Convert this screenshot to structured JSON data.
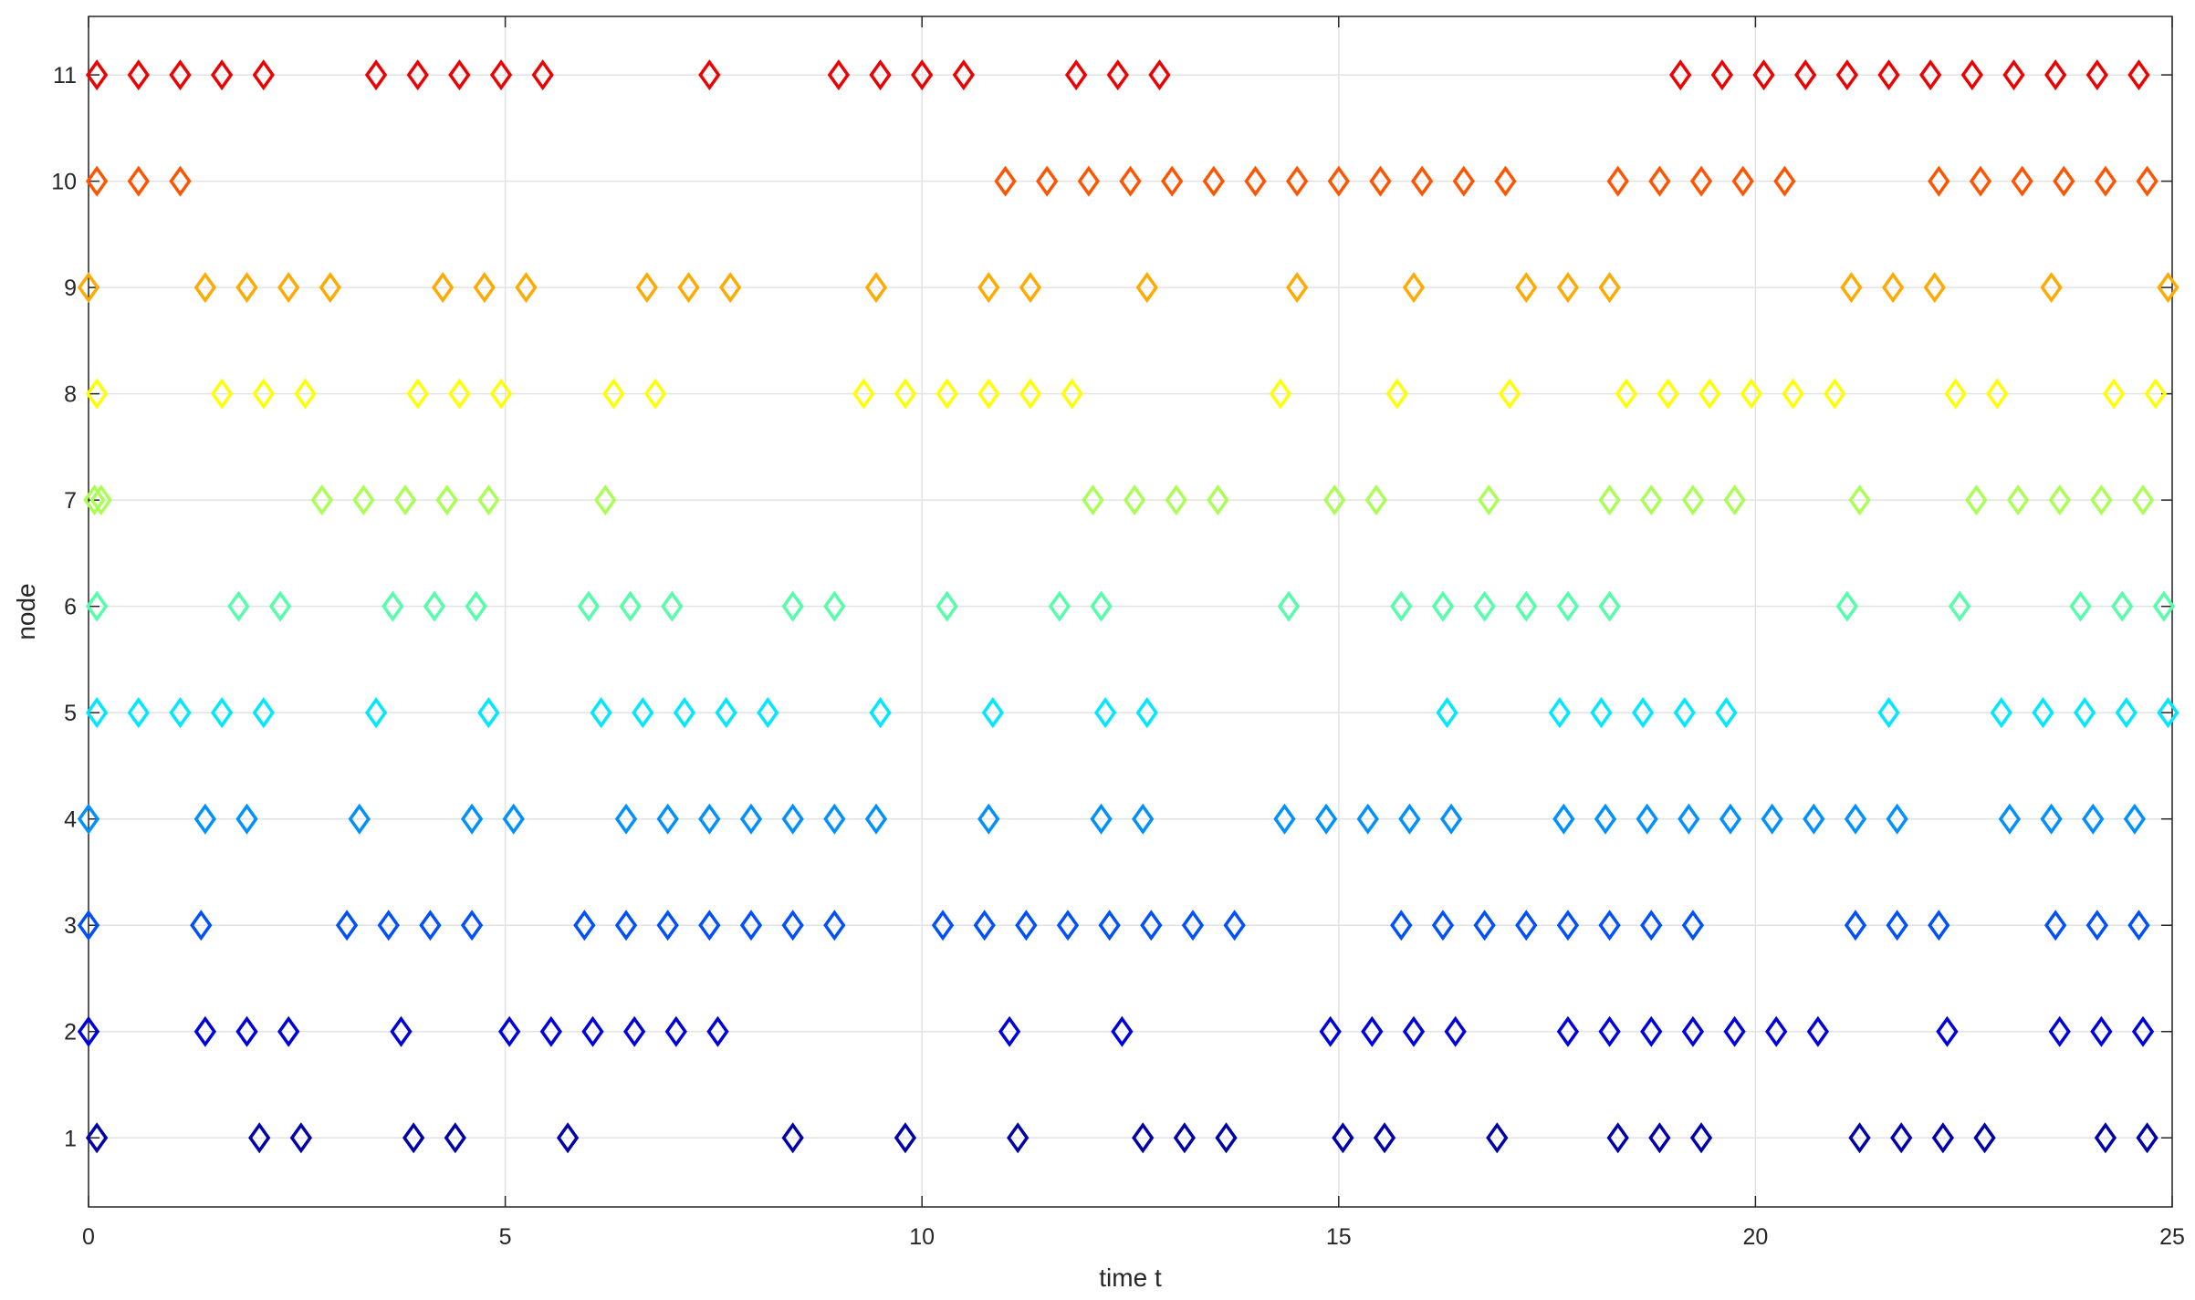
{
  "chart_data": {
    "type": "scatter",
    "title": "",
    "xlabel": "time t",
    "ylabel": "node",
    "xlim": [
      0,
      25
    ],
    "ylim": [
      0.35,
      11.55
    ],
    "xticks": [
      0,
      5,
      10,
      15,
      20,
      25
    ],
    "yticks": [
      1,
      2,
      3,
      4,
      5,
      6,
      7,
      8,
      9,
      10,
      11
    ],
    "grid": true,
    "marker": "diamond-open",
    "series": [
      {
        "node": 1,
        "color": "#0000aa",
        "x": [
          0.1,
          2.05,
          2.55,
          3.9,
          4.4,
          5.75,
          8.45,
          9.8,
          11.15,
          12.65,
          13.15,
          13.65,
          15.05,
          15.55,
          16.9,
          18.35,
          18.85,
          19.35,
          21.25,
          21.75,
          22.25,
          22.75,
          24.2,
          24.7
        ]
      },
      {
        "node": 2,
        "color": "#0000dd",
        "x": [
          0.0,
          1.4,
          1.9,
          2.4,
          3.75,
          5.05,
          5.55,
          6.05,
          6.55,
          7.05,
          7.55,
          11.05,
          12.4,
          14.9,
          15.4,
          15.9,
          16.4,
          17.75,
          18.25,
          18.75,
          19.25,
          19.75,
          20.25,
          20.75,
          22.3,
          23.65,
          24.15,
          24.65
        ]
      },
      {
        "node": 3,
        "color": "#0050ff",
        "x": [
          0.0,
          1.35,
          3.1,
          3.6,
          4.1,
          4.6,
          5.95,
          6.45,
          6.95,
          7.45,
          7.95,
          8.45,
          8.95,
          10.25,
          10.75,
          11.25,
          11.75,
          12.25,
          12.75,
          13.25,
          13.75,
          15.75,
          16.25,
          16.75,
          17.25,
          17.75,
          18.25,
          18.75,
          19.25,
          21.2,
          21.7,
          22.2,
          23.6,
          24.1,
          24.6
        ]
      },
      {
        "node": 4,
        "color": "#0090ff",
        "x": [
          0.0,
          1.4,
          1.9,
          3.25,
          4.6,
          5.1,
          6.45,
          6.95,
          7.45,
          7.95,
          8.45,
          8.95,
          9.45,
          10.8,
          12.15,
          12.65,
          14.35,
          14.85,
          15.35,
          15.85,
          16.35,
          17.7,
          18.2,
          18.7,
          19.2,
          19.7,
          20.2,
          20.7,
          21.2,
          21.7,
          23.05,
          23.55,
          24.05,
          24.55
        ]
      },
      {
        "node": 5,
        "color": "#00e8ff",
        "x": [
          0.1,
          0.6,
          1.1,
          1.6,
          2.1,
          3.45,
          4.8,
          6.15,
          6.65,
          7.15,
          7.65,
          8.15,
          9.5,
          10.85,
          12.2,
          12.7,
          16.3,
          17.65,
          18.15,
          18.65,
          19.15,
          19.65,
          21.6,
          22.95,
          23.45,
          23.95,
          24.45,
          24.95
        ]
      },
      {
        "node": 6,
        "color": "#55ffaa",
        "x": [
          0.1,
          1.8,
          2.3,
          3.65,
          4.15,
          4.65,
          6.0,
          6.5,
          7.0,
          8.45,
          8.95,
          10.3,
          11.65,
          12.15,
          14.4,
          15.75,
          16.25,
          16.75,
          17.25,
          17.75,
          18.25,
          21.1,
          22.45,
          23.9,
          24.4,
          24.9
        ]
      },
      {
        "node": 7,
        "color": "#aaff55",
        "x": [
          0.07,
          0.15,
          2.8,
          3.3,
          3.8,
          4.3,
          4.8,
          6.2,
          12.05,
          12.55,
          13.05,
          13.55,
          14.95,
          15.45,
          16.8,
          18.25,
          18.75,
          19.25,
          19.75,
          21.25,
          22.65,
          23.15,
          23.65,
          24.15,
          24.65
        ]
      },
      {
        "node": 8,
        "color": "#ffff00",
        "x": [
          0.1,
          1.6,
          2.1,
          2.6,
          3.95,
          4.45,
          4.95,
          6.3,
          6.8,
          9.3,
          9.8,
          10.3,
          10.8,
          11.3,
          11.8,
          14.3,
          15.7,
          17.05,
          18.45,
          18.95,
          19.45,
          19.95,
          20.45,
          20.95,
          22.4,
          22.9,
          24.3,
          24.8
        ]
      },
      {
        "node": 9,
        "color": "#ffaa00",
        "x": [
          0.0,
          1.4,
          1.9,
          2.4,
          2.9,
          4.25,
          4.75,
          5.25,
          6.7,
          7.2,
          7.7,
          9.45,
          10.8,
          11.3,
          12.7,
          14.5,
          15.9,
          17.25,
          17.75,
          18.25,
          21.15,
          21.65,
          22.15,
          23.55,
          24.95
        ]
      },
      {
        "node": 10,
        "color": "#ff5500",
        "x": [
          0.1,
          0.6,
          1.1,
          11.0,
          11.5,
          12.0,
          12.5,
          13.0,
          13.5,
          14.0,
          14.5,
          15.0,
          15.5,
          16.0,
          16.5,
          17.0,
          18.35,
          18.85,
          19.35,
          19.85,
          20.35,
          22.2,
          22.7,
          23.2,
          23.7,
          24.2,
          24.7
        ]
      },
      {
        "node": 11,
        "color": "#ee0000",
        "x": [
          0.1,
          0.6,
          1.1,
          1.6,
          2.1,
          3.45,
          3.95,
          4.45,
          4.95,
          5.45,
          7.45,
          9.0,
          9.5,
          10.0,
          10.5,
          11.85,
          12.35,
          12.85,
          19.1,
          19.6,
          20.1,
          20.6,
          21.1,
          21.6,
          22.1,
          22.6,
          23.1,
          23.6,
          24.1,
          24.6
        ]
      }
    ]
  }
}
